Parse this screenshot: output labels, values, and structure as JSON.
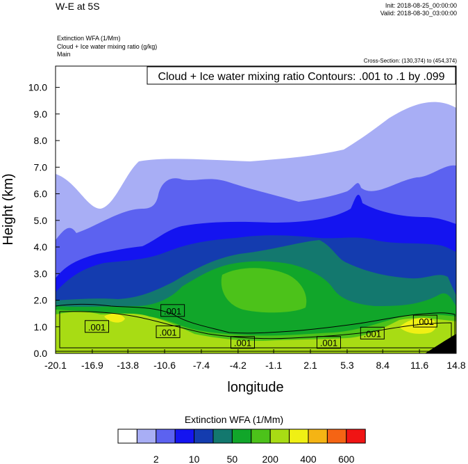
{
  "header": {
    "title": "W-E at 5S",
    "init": "Init: 2018-08-25_00:00:00",
    "valid": "Valid: 2018-08-30_03:00:00",
    "fields": [
      "Extinction WFA   (1/Mm)",
      "Cloud + Ice water mixing ratio   (g/kg)",
      "Main"
    ],
    "cross_section": "Cross-Section: (130,374) to (454,374)"
  },
  "chart_data": {
    "type": "heatmap",
    "title": "W-E at 5S",
    "xlabel": "longitude",
    "ylabel": "Height (km)",
    "contour_label": "Cloud + Ice water mixing ratio Contours: .001 to .1 by .099",
    "xlim": [
      -20.1,
      14.8
    ],
    "ylim": [
      0.0,
      10.8
    ],
    "x_ticks": [
      "-20.1",
      "-16.9",
      "-13.8",
      "-10.6",
      "-7.4",
      "-4.2",
      "-1.1",
      "2.1",
      "5.3",
      "8.4",
      "11.6",
      "14.8"
    ],
    "y_ticks": [
      "0.0",
      "1.0",
      "2.0",
      "3.0",
      "4.0",
      "5.0",
      "6.0",
      "7.0",
      "8.0",
      "9.0",
      "10.0"
    ],
    "contour_labels": [
      {
        "text": ".001",
        "x": -9.9,
        "y": 1.6
      },
      {
        "text": ".001",
        "x": -16.5,
        "y": 1.0
      },
      {
        "text": ".001",
        "x": -10.3,
        "y": 0.8
      },
      {
        "text": ".001",
        "x": -3.8,
        "y": 0.4
      },
      {
        "text": ".001",
        "x": 3.7,
        "y": 0.4
      },
      {
        "text": ".001",
        "x": 7.5,
        "y": 0.75
      },
      {
        "text": ".001",
        "x": 12.1,
        "y": 1.2
      }
    ],
    "colorbar": {
      "title": "Extinction WFA  (1/Mm)",
      "colors": [
        "#ffffff",
        "#a8aef5",
        "#5c62f0",
        "#1414f0",
        "#143caf",
        "#13786e",
        "#11a62a",
        "#4cc21a",
        "#a8dc14",
        "#f0f014",
        "#f5b414",
        "#f56414",
        "#f01414"
      ],
      "tick_labels": [
        {
          "label": "2",
          "bin": 2
        },
        {
          "label": "10",
          "bin": 4
        },
        {
          "label": "50",
          "bin": 6
        },
        {
          "label": "200",
          "bin": 8
        },
        {
          "label": "400",
          "bin": 10
        },
        {
          "label": "600",
          "bin": 12
        }
      ]
    }
  }
}
